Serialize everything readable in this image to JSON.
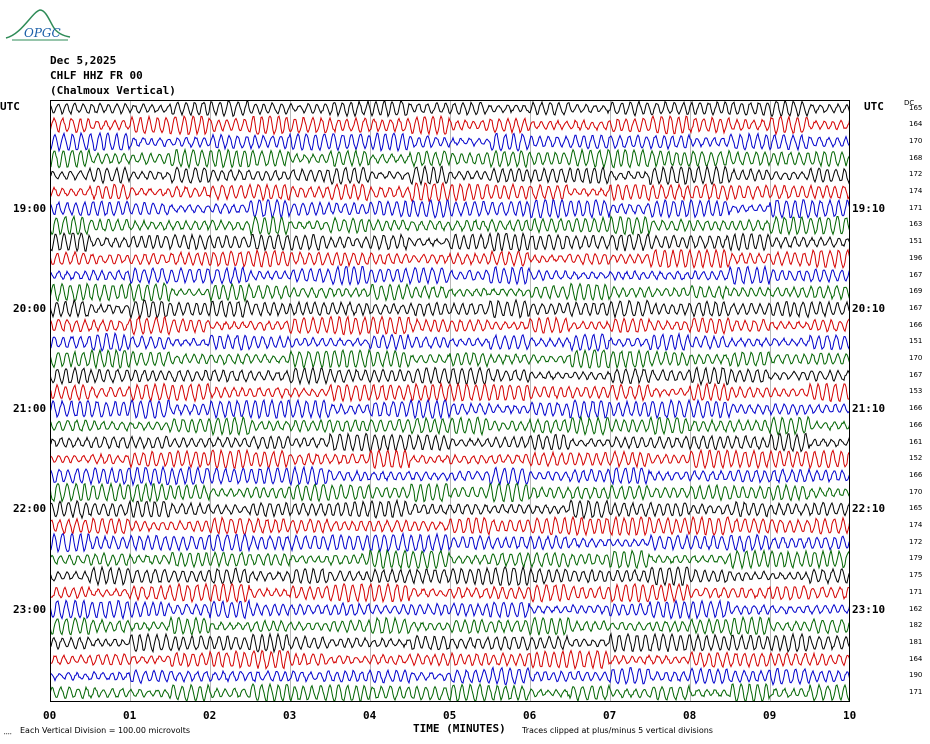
{
  "logo_text": "OPGC",
  "header": {
    "date": "Dec 5,2025",
    "station": "CHLF HHZ FR 00",
    "site": "(Chalmoux Vertical)"
  },
  "left_axis_title": "UTC",
  "right_axis_title": "UTC",
  "dc_header": "DC",
  "left_hour_labels": [
    "19:00",
    "20:00",
    "21:00",
    "22:00",
    "23:00"
  ],
  "right_hour_labels": [
    "19:10",
    "20:10",
    "21:10",
    "22:10",
    "23:10"
  ],
  "dc_values": [
    165,
    164,
    170,
    168,
    172,
    174,
    171,
    163,
    151,
    196,
    167,
    169,
    167,
    166,
    151,
    170,
    167,
    153,
    166,
    166,
    161,
    152,
    166,
    170,
    165,
    174,
    172,
    179,
    175,
    171,
    162,
    182,
    181,
    164,
    190,
    171
  ],
  "trace_colors": [
    "#000000",
    "#d40000",
    "#0000cc",
    "#006400"
  ],
  "x_axis": {
    "title": "TIME (MINUTES)",
    "tick_labels": [
      "00",
      "01",
      "02",
      "03",
      "04",
      "05",
      "06",
      "07",
      "08",
      "09",
      "10"
    ]
  },
  "footer": {
    "scale": "Each Vertical Division =  100.00 microvolts",
    "clip": "Traces clipped at plus/minus 5 vertical divisions"
  }
}
